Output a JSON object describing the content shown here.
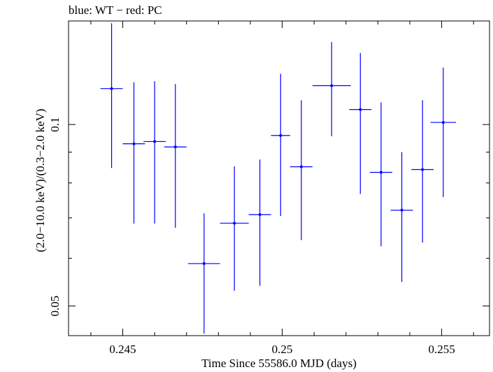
{
  "chart_data": {
    "type": "scatter",
    "title": "blue: WT − red: PC",
    "xlabel": "Time Since 55586.0 MJD (days)",
    "ylabel": "(2.0−10.0 keV)/(0.3−2.0 keV)",
    "y_scale": "log",
    "xlim": [
      0.2433,
      0.2565
    ],
    "ylim": [
      0.04465,
      0.1485
    ],
    "x_ticks": [
      {
        "value": 0.245,
        "label": "0.245"
      },
      {
        "value": 0.25,
        "label": "0.25"
      },
      {
        "value": 0.255,
        "label": "0.255"
      }
    ],
    "y_ticks": [
      {
        "value": 0.05,
        "label": "0.05"
      },
      {
        "value": 0.1,
        "label": "0.1"
      }
    ],
    "grid": false,
    "series": [
      {
        "color": "#0000ff",
        "points": [
          {
            "x": 0.24465,
            "xerr": 0.00035,
            "y": 0.1147,
            "ylo": 0.0847,
            "yhi": 0.1472
          },
          {
            "x": 0.24535,
            "xerr": 0.00035,
            "y": 0.0929,
            "ylo": 0.0685,
            "yhi": 0.1175
          },
          {
            "x": 0.246,
            "xerr": 0.00035,
            "y": 0.0937,
            "ylo": 0.0685,
            "yhi": 0.118
          },
          {
            "x": 0.24665,
            "xerr": 0.00035,
            "y": 0.0918,
            "ylo": 0.0674,
            "yhi": 0.1167
          },
          {
            "x": 0.24755,
            "xerr": 0.0005,
            "y": 0.0588,
            "ylo": 0.045,
            "yhi": 0.0712
          },
          {
            "x": 0.2485,
            "xerr": 0.00045,
            "y": 0.0686,
            "ylo": 0.053,
            "yhi": 0.0852
          },
          {
            "x": 0.2493,
            "xerr": 0.00035,
            "y": 0.0709,
            "ylo": 0.054,
            "yhi": 0.0875
          },
          {
            "x": 0.24995,
            "xerr": 0.0003,
            "y": 0.0959,
            "ylo": 0.0705,
            "yhi": 0.1214
          },
          {
            "x": 0.2506,
            "xerr": 0.00035,
            "y": 0.0851,
            "ylo": 0.0643,
            "yhi": 0.1097
          },
          {
            "x": 0.25155,
            "xerr": 0.0006,
            "y": 0.116,
            "ylo": 0.0956,
            "yhi": 0.137
          },
          {
            "x": 0.25245,
            "xerr": 0.00035,
            "y": 0.1059,
            "ylo": 0.0767,
            "yhi": 0.1314
          },
          {
            "x": 0.2531,
            "xerr": 0.00035,
            "y": 0.0833,
            "ylo": 0.0628,
            "yhi": 0.1088
          },
          {
            "x": 0.25375,
            "xerr": 0.00035,
            "y": 0.0721,
            "ylo": 0.0548,
            "yhi": 0.09
          },
          {
            "x": 0.2544,
            "xerr": 0.00035,
            "y": 0.0842,
            "ylo": 0.0637,
            "yhi": 0.1097
          },
          {
            "x": 0.25505,
            "xerr": 0.0004,
            "y": 0.1008,
            "ylo": 0.0758,
            "yhi": 0.1243
          }
        ]
      }
    ]
  }
}
